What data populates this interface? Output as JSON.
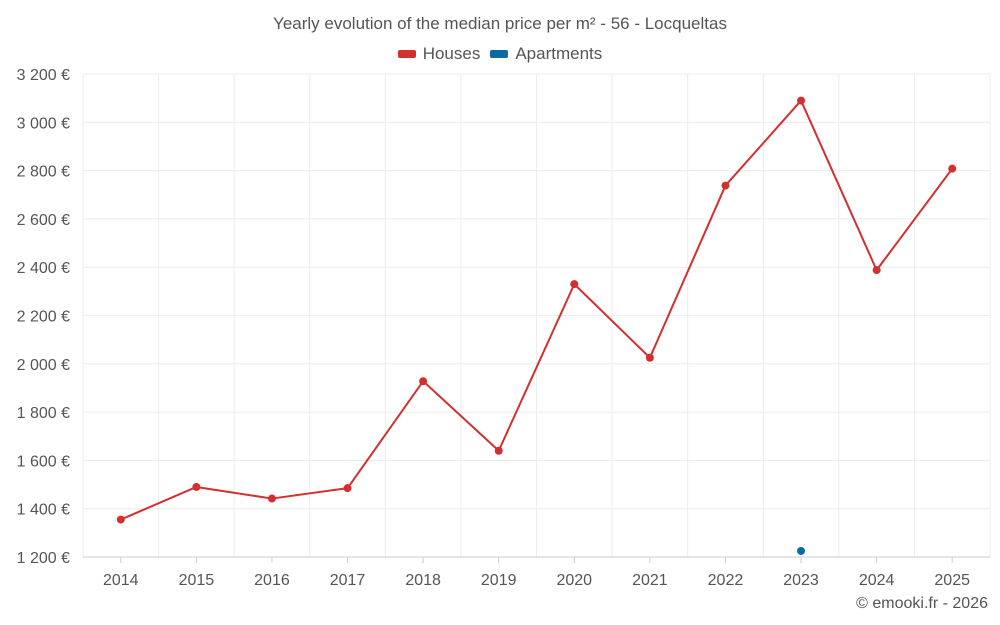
{
  "chart_data": {
    "type": "line",
    "title": "Yearly evolution of the median price per m² - 56 - Locqueltas",
    "categories": [
      "2014",
      "2015",
      "2016",
      "2017",
      "2018",
      "2019",
      "2020",
      "2021",
      "2022",
      "2023",
      "2024",
      "2025"
    ],
    "series": [
      {
        "name": "Houses",
        "color": "#d32f2f",
        "values": [
          1355,
          1490,
          1442,
          1485,
          1928,
          1640,
          2330,
          2025,
          2738,
          3090,
          2388,
          2808
        ]
      },
      {
        "name": "Apartments",
        "color": "#0d6b9f",
        "values": [
          null,
          null,
          null,
          null,
          null,
          null,
          null,
          null,
          null,
          1225,
          null,
          null
        ]
      }
    ],
    "ylim": [
      1200,
      3200
    ],
    "yticks": [
      1200,
      1400,
      1600,
      1800,
      2000,
      2200,
      2400,
      2600,
      2800,
      3000,
      3200
    ],
    "ytick_labels": [
      "1 200 €",
      "1 400 €",
      "1 600 €",
      "1 800 €",
      "2 000 €",
      "2 200 €",
      "2 400 €",
      "2 600 €",
      "2 800 €",
      "3 000 €",
      "3 200 €"
    ],
    "grid": true,
    "legend_position": "top-center",
    "xlabel": "",
    "ylabel": ""
  },
  "footer": {
    "credit": "© emooki.fr - 2026"
  }
}
